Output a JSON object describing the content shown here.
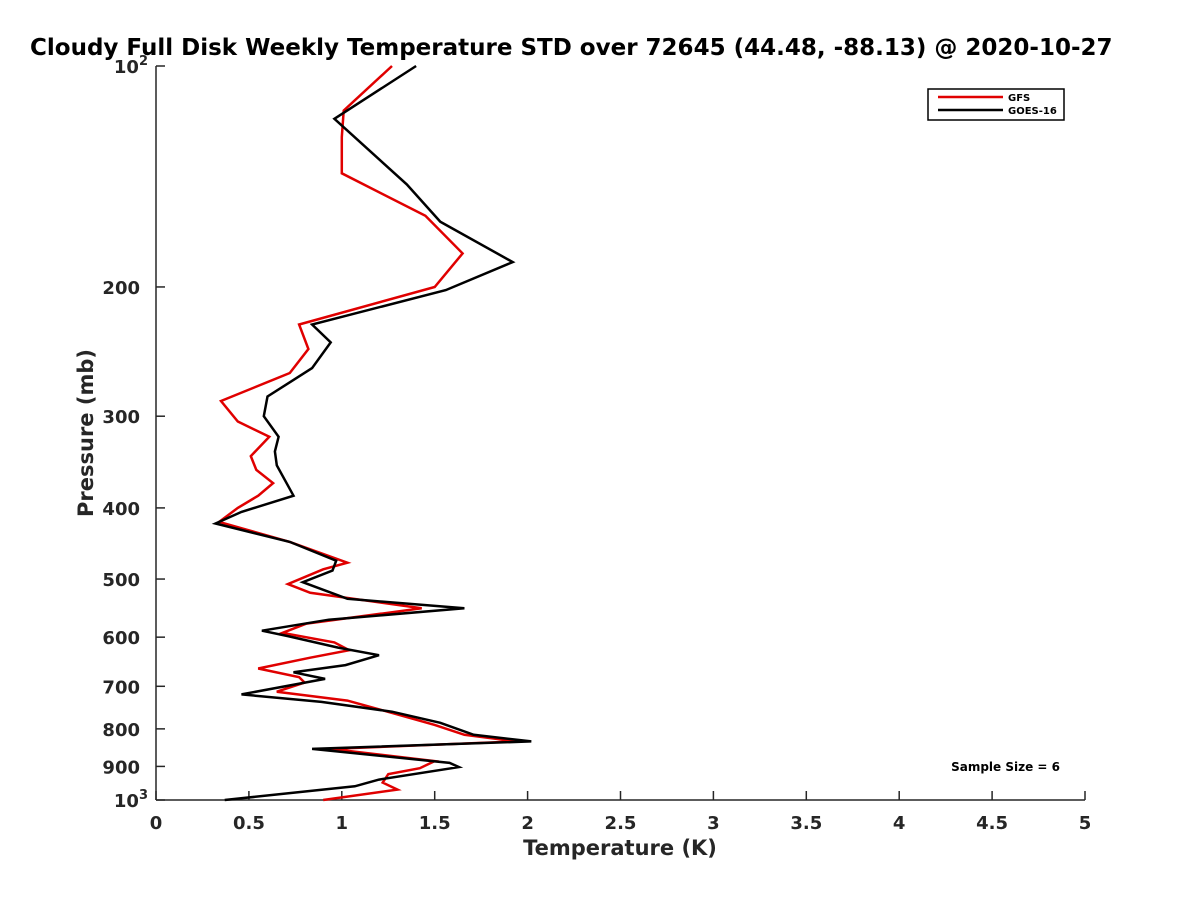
{
  "chart_data": {
    "type": "line",
    "title": "Cloudy Full Disk Weekly Temperature STD over 72645 (44.48, -88.13) @ 2020-10-27",
    "xlabel": "Temperature (K)",
    "ylabel": "Pressure (mb)",
    "xlim": [
      0,
      5
    ],
    "ylim": [
      1000,
      100
    ],
    "y_scale": "log",
    "y_reversed": true,
    "grid": false,
    "legend_position": "top-right",
    "x_ticks": [
      0,
      0.5,
      1,
      1.5,
      2,
      2.5,
      3,
      3.5,
      4,
      4.5,
      5
    ],
    "x_tick_labels": [
      "0",
      "0.5",
      "1",
      "1.5",
      "2",
      "2.5",
      "3",
      "3.5",
      "4",
      "4.5",
      "5"
    ],
    "y_ticks": [
      {
        "value": 100,
        "label": "10",
        "exponent": "2"
      },
      {
        "value": 200,
        "label": "200"
      },
      {
        "value": 300,
        "label": "300"
      },
      {
        "value": 400,
        "label": "400"
      },
      {
        "value": 500,
        "label": "500"
      },
      {
        "value": 600,
        "label": "600"
      },
      {
        "value": 700,
        "label": "700"
      },
      {
        "value": 800,
        "label": "800"
      },
      {
        "value": 900,
        "label": "900"
      },
      {
        "value": 1000,
        "label": "10",
        "exponent": "3"
      }
    ],
    "annotation": "Sample Size = 6",
    "series": [
      {
        "name": "GFS",
        "color": "#e00000",
        "points": [
          [
            1.27,
            100
          ],
          [
            1.01,
            115
          ],
          [
            1.0,
            125
          ],
          [
            1.0,
            140
          ],
          [
            1.45,
            160
          ],
          [
            1.65,
            180
          ],
          [
            1.5,
            200
          ],
          [
            0.77,
            225
          ],
          [
            0.82,
            243
          ],
          [
            0.72,
            262
          ],
          [
            0.35,
            286
          ],
          [
            0.44,
            305
          ],
          [
            0.61,
            320
          ],
          [
            0.51,
            340
          ],
          [
            0.54,
            355
          ],
          [
            0.63,
            370
          ],
          [
            0.55,
            385
          ],
          [
            0.44,
            400
          ],
          [
            0.34,
            418
          ],
          [
            0.72,
            445
          ],
          [
            1.03,
            475
          ],
          [
            0.9,
            485
          ],
          [
            0.71,
            508
          ],
          [
            0.83,
            522
          ],
          [
            1.43,
            548
          ],
          [
            0.81,
            575
          ],
          [
            0.68,
            592
          ],
          [
            0.96,
            610
          ],
          [
            1.04,
            625
          ],
          [
            0.83,
            640
          ],
          [
            0.55,
            662
          ],
          [
            0.77,
            680
          ],
          [
            0.8,
            692
          ],
          [
            0.65,
            712
          ],
          [
            1.03,
            732
          ],
          [
            1.28,
            762
          ],
          [
            1.5,
            790
          ],
          [
            1.66,
            815
          ],
          [
            1.94,
            832
          ],
          [
            0.94,
            852
          ],
          [
            1.5,
            885
          ],
          [
            1.42,
            905
          ],
          [
            1.25,
            922
          ],
          [
            1.22,
            947
          ],
          [
            1.3,
            968
          ],
          [
            0.9,
            1000
          ]
        ]
      },
      {
        "name": "GOES-16",
        "color": "#000000",
        "points": [
          [
            1.4,
            100
          ],
          [
            0.96,
            118
          ],
          [
            1.35,
            145
          ],
          [
            1.53,
            163
          ],
          [
            1.92,
            185
          ],
          [
            1.56,
            202
          ],
          [
            0.84,
            225
          ],
          [
            0.94,
            238
          ],
          [
            0.84,
            258
          ],
          [
            0.6,
            282
          ],
          [
            0.58,
            300
          ],
          [
            0.66,
            320
          ],
          [
            0.64,
            335
          ],
          [
            0.65,
            350
          ],
          [
            0.74,
            385
          ],
          [
            0.46,
            405
          ],
          [
            0.32,
            420
          ],
          [
            0.72,
            445
          ],
          [
            0.97,
            472
          ],
          [
            0.95,
            487
          ],
          [
            0.79,
            505
          ],
          [
            1.03,
            532
          ],
          [
            1.66,
            548
          ],
          [
            0.93,
            568
          ],
          [
            0.57,
            588
          ],
          [
            0.71,
            598
          ],
          [
            0.98,
            620
          ],
          [
            1.2,
            635
          ],
          [
            1.02,
            655
          ],
          [
            0.74,
            670
          ],
          [
            0.91,
            684
          ],
          [
            0.46,
            718
          ],
          [
            0.89,
            735
          ],
          [
            1.27,
            758
          ],
          [
            1.53,
            785
          ],
          [
            1.71,
            815
          ],
          [
            2.02,
            832
          ],
          [
            0.84,
            852
          ],
          [
            1.58,
            890
          ],
          [
            1.63,
            902
          ],
          [
            1.2,
            938
          ],
          [
            1.07,
            958
          ],
          [
            0.37,
            1000
          ]
        ]
      }
    ]
  }
}
